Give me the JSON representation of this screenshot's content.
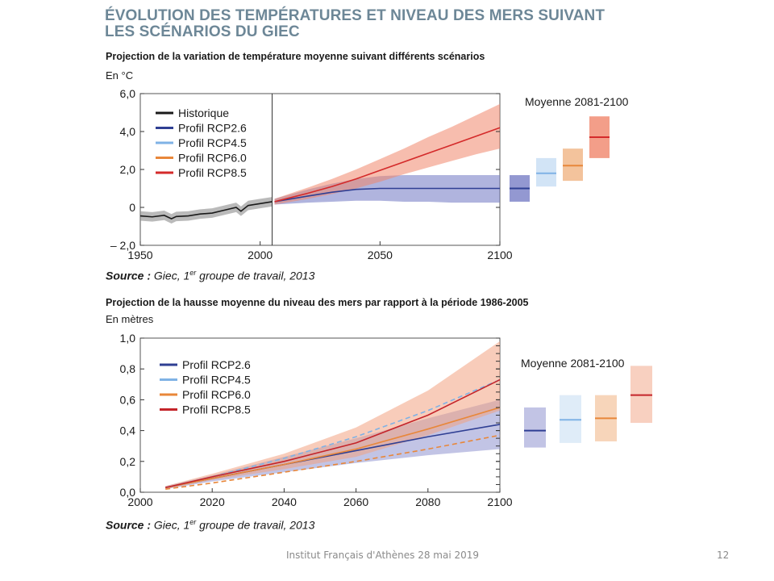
{
  "slide": {
    "title_line1": "ÉVOLUTION DES TEMPÉRATURES ET NIVEAU DES MERS SUIVANT",
    "title_line2": "LES SCÉNARIOS DU GIEC",
    "footer": "Institut Français d'Athènes 28 mai 2019",
    "page_number": "12"
  },
  "chart1": {
    "subtitle": "Projection de la variation de température moyenne suivant différents scénarios",
    "unit": "En °C",
    "source_label": "Source :",
    "source_text": "Giec, 1",
    "source_sup": "er",
    "source_tail": " groupe de travail, 2013",
    "side_title": "Moyenne 2081-2100"
  },
  "chart2": {
    "subtitle": "Projection de la hausse moyenne du niveau des mers par rapport à la période 1986-2005",
    "unit": "En mètres",
    "source_label": "Source :",
    "source_text": "Giec, 1",
    "source_sup": "er",
    "source_tail": " groupe de travail, 2013",
    "side_title": "Moyenne 2081-2100"
  },
  "chart_data": [
    {
      "type": "line",
      "xlim": [
        1950,
        2100
      ],
      "ylim": [
        -2.0,
        6.0
      ],
      "x_ticks": [
        1950,
        2000,
        2050,
        2100
      ],
      "x_tick_labels": [
        "1950",
        "2000",
        "2050",
        "2100"
      ],
      "y_ticks": [
        -2.0,
        0,
        2.0,
        4.0,
        6.0
      ],
      "y_tick_labels": [
        "– 2,0",
        "0",
        "2,0",
        "4,0",
        "6,0"
      ],
      "grid": false,
      "legend_position": "top-left",
      "divider_x": 2005,
      "series": [
        {
          "name": "Historique",
          "color": "#1a1a1a",
          "band_color": "#8c8c8c",
          "x": [
            1950,
            1955,
            1960,
            1963,
            1965,
            1970,
            1975,
            1980,
            1985,
            1990,
            1992,
            1995,
            2000,
            2005
          ],
          "y": [
            -0.45,
            -0.5,
            -0.42,
            -0.6,
            -0.48,
            -0.45,
            -0.35,
            -0.3,
            -0.15,
            0.0,
            -0.2,
            0.1,
            0.2,
            0.3
          ],
          "band": 0.25
        },
        {
          "name": "Profil RCP2.6",
          "color": "#2f3f93",
          "band_color": "#6f76c2",
          "x": [
            2006,
            2020,
            2030,
            2040,
            2050,
            2060,
            2070,
            2080,
            2090,
            2100
          ],
          "y": [
            0.3,
            0.6,
            0.8,
            0.95,
            1.0,
            1.0,
            1.0,
            1.0,
            1.0,
            1.0
          ],
          "low": [
            0.15,
            0.25,
            0.3,
            0.35,
            0.35,
            0.3,
            0.3,
            0.25,
            0.25,
            0.25
          ],
          "high": [
            0.45,
            0.95,
            1.25,
            1.5,
            1.65,
            1.7,
            1.7,
            1.7,
            1.7,
            1.7
          ]
        },
        {
          "name": "Profil RCP4.5",
          "color": "#7fb2e5",
          "band_color": "#7fb2e5"
        },
        {
          "name": "Profil RCP6.0",
          "color": "#e8873a",
          "band_color": "#e8873a"
        },
        {
          "name": "Profil RCP8.5",
          "color": "#d42a2a",
          "band_color": "#f0866c",
          "x": [
            2006,
            2020,
            2030,
            2040,
            2050,
            2060,
            2070,
            2080,
            2090,
            2100
          ],
          "y": [
            0.3,
            0.75,
            1.1,
            1.5,
            1.95,
            2.4,
            2.85,
            3.3,
            3.75,
            4.2
          ],
          "low": [
            0.15,
            0.45,
            0.7,
            1.0,
            1.35,
            1.75,
            2.1,
            2.45,
            2.8,
            3.1
          ],
          "high": [
            0.45,
            1.05,
            1.5,
            2.0,
            2.55,
            3.1,
            3.7,
            4.25,
            4.85,
            5.45
          ]
        }
      ],
      "side_boxes": [
        {
          "name": "Profil RCP2.6",
          "mean": 1.0,
          "low": 0.3,
          "high": 1.7
        },
        {
          "name": "Profil RCP4.5",
          "mean": 1.8,
          "low": 1.1,
          "high": 2.6
        },
        {
          "name": "Profil RCP6.0",
          "mean": 2.2,
          "low": 1.4,
          "high": 3.1
        },
        {
          "name": "Profil RCP8.5",
          "mean": 3.7,
          "low": 2.6,
          "high": 4.8
        }
      ]
    },
    {
      "type": "line",
      "xlim": [
        2000,
        2100
      ],
      "ylim": [
        0.0,
        1.0
      ],
      "x_ticks": [
        2000,
        2020,
        2040,
        2060,
        2080,
        2100
      ],
      "x_tick_labels": [
        "2000",
        "2020",
        "2040",
        "2060",
        "2080",
        "2100"
      ],
      "y_ticks": [
        0.0,
        0.2,
        0.4,
        0.6,
        0.8,
        1.0
      ],
      "y_tick_labels": [
        "0,0",
        "0,2",
        "0,4",
        "0,6",
        "0,8",
        "1,0"
      ],
      "grid": false,
      "legend_position": "top-left",
      "series": [
        {
          "name": "Profil RCP2.6",
          "color": "#2f3f93",
          "band_color": "#8f93cf",
          "x": [
            2007,
            2020,
            2040,
            2060,
            2080,
            2100
          ],
          "y": [
            0.03,
            0.09,
            0.18,
            0.27,
            0.36,
            0.44
          ],
          "low": [
            0.02,
            0.07,
            0.13,
            0.19,
            0.24,
            0.28
          ],
          "high": [
            0.04,
            0.11,
            0.23,
            0.35,
            0.48,
            0.6
          ]
        },
        {
          "name": "Profil RCP4.5",
          "color": "#7fb2e5",
          "band_color": "#7fb2e5",
          "dashed": true,
          "x": [
            2007,
            2020,
            2040,
            2060,
            2080,
            2100
          ],
          "y": [
            0.03,
            0.1,
            0.22,
            0.36,
            0.53,
            0.73
          ]
        },
        {
          "name": "Profil RCP6.0",
          "color": "#e8873a",
          "band_color": "#e8873a",
          "x": [
            2007,
            2020,
            2040,
            2060,
            2080,
            2100
          ],
          "y": [
            0.03,
            0.09,
            0.18,
            0.28,
            0.41,
            0.55
          ],
          "dashed_x": [
            2007,
            2020,
            2040,
            2060,
            2080,
            2100
          ],
          "dashed_y": [
            0.02,
            0.06,
            0.13,
            0.2,
            0.28,
            0.37
          ]
        },
        {
          "name": "Profil RCP8.5",
          "color": "#c4242a",
          "band_color": "#f2a282",
          "x": [
            2007,
            2020,
            2040,
            2060,
            2080,
            2100
          ],
          "y": [
            0.03,
            0.1,
            0.2,
            0.32,
            0.5,
            0.73
          ],
          "low": [
            0.02,
            0.08,
            0.15,
            0.23,
            0.37,
            0.53
          ],
          "high": [
            0.04,
            0.12,
            0.25,
            0.42,
            0.66,
            0.98
          ]
        }
      ],
      "side_boxes": [
        {
          "name": "Profil RCP2.6",
          "mean": 0.4,
          "low": 0.29,
          "high": 0.55
        },
        {
          "name": "Profil RCP4.5",
          "mean": 0.47,
          "low": 0.32,
          "high": 0.63
        },
        {
          "name": "Profil RCP6.0",
          "mean": 0.48,
          "low": 0.33,
          "high": 0.63
        },
        {
          "name": "Profil RCP8.5",
          "mean": 0.63,
          "low": 0.45,
          "high": 0.82
        }
      ]
    }
  ]
}
